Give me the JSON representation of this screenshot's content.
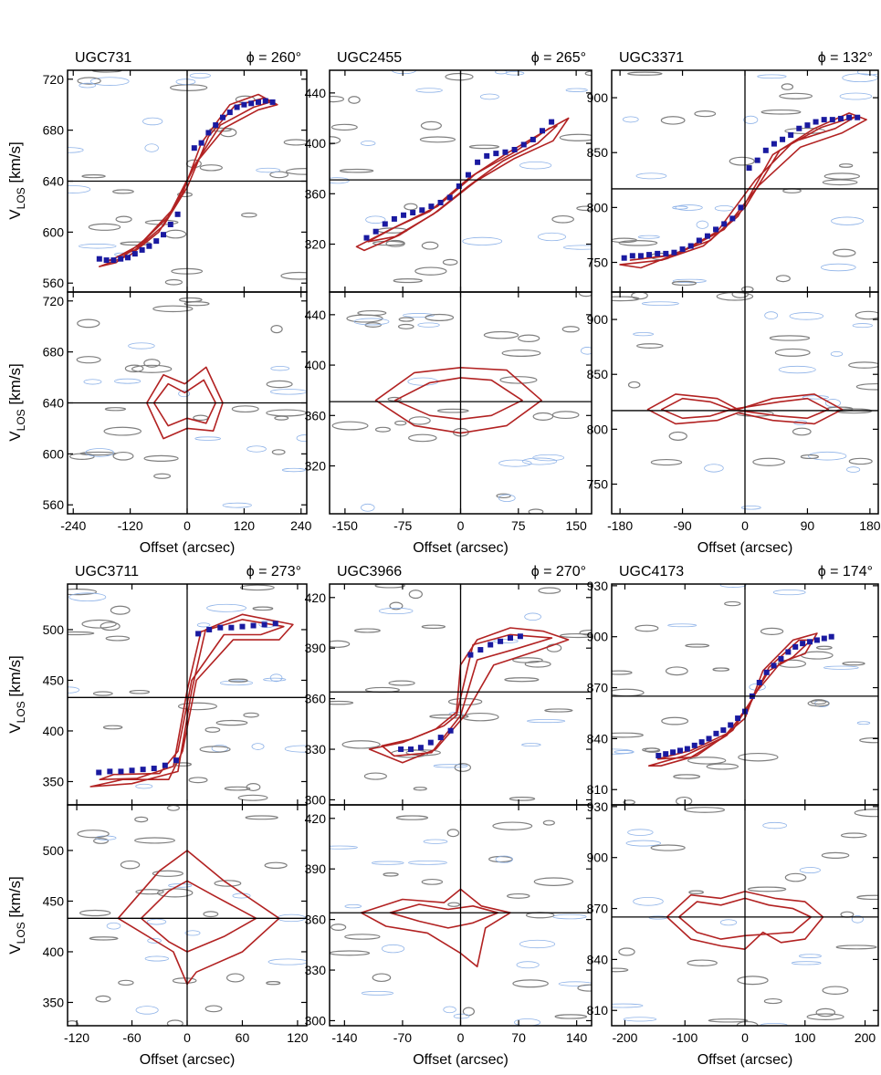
{
  "figure": {
    "axis_label_x": "Offset (arcsec)",
    "axis_label_y_main": "V",
    "axis_label_y_sub": "LOS",
    "axis_label_y_unit": " [km/s]",
    "colors": {
      "model_contour": "#b22222",
      "data_contour": "#7f7f7f",
      "negative_contour": "#8fb3e8",
      "rotation_curve": "#1a1aa0",
      "axes": "#000000"
    }
  },
  "chart_data": [
    {
      "type": "scatter",
      "galaxy": "UGC731",
      "phi": "ϕ = 260°",
      "vsys": 640,
      "x_ticks": [
        -240,
        -120,
        0,
        120,
        240
      ],
      "xlim": [
        -252,
        252
      ],
      "y_ticks": [
        560,
        600,
        640,
        680,
        720
      ],
      "ylim": [
        553,
        727
      ],
      "rotation_curve": {
        "x": [
          -185,
          -170,
          -155,
          -140,
          -125,
          -110,
          -95,
          -80,
          -65,
          -50,
          -35,
          -20,
          15,
          30,
          45,
          60,
          75,
          90,
          105,
          120,
          135,
          150,
          165,
          180
        ],
        "y": [
          579,
          578,
          578,
          579,
          580,
          583,
          586,
          589,
          593,
          598,
          606,
          614,
          666,
          670,
          678,
          684,
          690,
          694,
          698,
          700,
          701,
          702,
          703,
          702
        ]
      },
      "major_axis_model": [
        {
          "x": [
            -185,
            -120,
            -60,
            -10,
            30,
            90,
            150,
            190,
            150,
            80,
            20,
            -30,
            -90,
            -150,
            -185
          ],
          "y": [
            573,
            582,
            600,
            630,
            670,
            700,
            708,
            700,
            696,
            682,
            655,
            618,
            594,
            576,
            573
          ]
        },
        {
          "x": [
            -170,
            -110,
            -50,
            0,
            45,
            100,
            160,
            175,
            140,
            70,
            15,
            -40,
            -100,
            -160,
            -170
          ],
          "y": [
            577,
            586,
            605,
            635,
            675,
            699,
            705,
            702,
            698,
            684,
            652,
            612,
            590,
            578,
            577
          ]
        }
      ],
      "minor_axis_model": [
        {
          "x": [
            -85,
            -50,
            -5,
            40,
            75,
            55,
            0,
            -50,
            -85
          ],
          "y": [
            640,
            662,
            655,
            668,
            640,
            618,
            620,
            612,
            640
          ]
        },
        {
          "x": [
            -70,
            -40,
            -5,
            35,
            60,
            40,
            0,
            -40,
            -70
          ],
          "y": [
            640,
            655,
            648,
            658,
            640,
            624,
            628,
            622,
            640
          ]
        }
      ]
    },
    {
      "type": "scatter",
      "galaxy": "UGC2455",
      "phi": "ϕ = 265°",
      "vsys": 371,
      "x_ticks": [
        -150,
        -75,
        0,
        75,
        150
      ],
      "xlim": [
        -170,
        170
      ],
      "y_ticks": [
        320,
        360,
        400,
        440
      ],
      "ylim": [
        282,
        458
      ],
      "rotation_curve": {
        "x": [
          -122,
          -110,
          -98,
          -86,
          -74,
          -62,
          -50,
          -38,
          -26,
          -14,
          -2,
          10,
          22,
          34,
          46,
          58,
          70,
          82,
          94,
          106,
          118
        ],
        "y": [
          325,
          330,
          336,
          340,
          343,
          345,
          347,
          350,
          353,
          357,
          366,
          375,
          385,
          390,
          392,
          393,
          395,
          399,
          403,
          410,
          417
        ]
      },
      "major_axis_model": [
        {
          "x": [
            -135,
            -90,
            -40,
            10,
            60,
            110,
            140,
            120,
            70,
            20,
            -30,
            -80,
            -125,
            -135
          ],
          "y": [
            318,
            332,
            346,
            372,
            392,
            410,
            420,
            402,
            388,
            370,
            346,
            327,
            315,
            318
          ]
        },
        {
          "x": [
            -120,
            -80,
            -30,
            20,
            70,
            115,
            125,
            100,
            55,
            10,
            -35,
            -85,
            -120
          ],
          "y": [
            322,
            335,
            350,
            376,
            393,
            412,
            414,
            400,
            386,
            366,
            344,
            326,
            322
          ]
        }
      ],
      "minor_axis_model": [
        {
          "x": [
            -110,
            -60,
            0,
            60,
            105,
            60,
            0,
            -60,
            -110
          ],
          "y": [
            372,
            394,
            398,
            396,
            372,
            352,
            346,
            352,
            372
          ]
        },
        {
          "x": [
            -85,
            -40,
            0,
            40,
            80,
            40,
            0,
            -40,
            -85
          ],
          "y": [
            372,
            386,
            390,
            388,
            372,
            360,
            357,
            360,
            372
          ]
        }
      ]
    },
    {
      "type": "scatter",
      "galaxy": "UGC3371",
      "phi": "ϕ = 132°",
      "vsys": 817,
      "x_ticks": [
        -180,
        -90,
        0,
        90,
        180
      ],
      "xlim": [
        -192,
        192
      ],
      "y_ticks": [
        750,
        800,
        850,
        900
      ],
      "ylim": [
        723,
        925
      ],
      "rotation_curve": {
        "x": [
          -174,
          -162,
          -150,
          -138,
          -126,
          -114,
          -102,
          -90,
          -78,
          -66,
          -54,
          -42,
          -30,
          -18,
          -6,
          6,
          18,
          30,
          42,
          54,
          66,
          78,
          90,
          102,
          114,
          126,
          138,
          150,
          162
        ],
        "y": [
          754,
          756,
          756,
          757,
          758,
          758,
          759,
          762,
          765,
          770,
          774,
          780,
          785,
          790,
          800,
          836,
          843,
          852,
          858,
          862,
          866,
          872,
          875,
          878,
          880,
          880,
          881,
          882,
          882
        ]
      },
      "major_axis_model": [
        {
          "x": [
            -180,
            -120,
            -60,
            -10,
            40,
            100,
            150,
            175,
            140,
            80,
            20,
            -30,
            -90,
            -150,
            -180
          ],
          "y": [
            748,
            752,
            765,
            792,
            848,
            872,
            886,
            880,
            868,
            855,
            820,
            780,
            760,
            745,
            748
          ]
        },
        {
          "x": [
            -165,
            -110,
            -50,
            0,
            50,
            110,
            160,
            130,
            70,
            15,
            -40,
            -100,
            -165
          ],
          "y": [
            752,
            756,
            770,
            800,
            852,
            873,
            883,
            872,
            860,
            825,
            778,
            757,
            752
          ]
        }
      ],
      "minor_axis_model": [
        {
          "x": [
            -140,
            -100,
            -40,
            -10,
            40,
            100,
            140,
            100,
            40,
            -10,
            -40,
            -100,
            -140
          ],
          "y": [
            818,
            832,
            828,
            818,
            828,
            832,
            818,
            805,
            808,
            815,
            808,
            805,
            818
          ]
        },
        {
          "x": [
            -120,
            -90,
            -50,
            -20,
            50,
            90,
            120,
            90,
            50,
            -20,
            -50,
            -90,
            -120
          ],
          "y": [
            818,
            828,
            825,
            818,
            825,
            828,
            818,
            810,
            812,
            818,
            812,
            810,
            818
          ]
        }
      ]
    },
    {
      "type": "scatter",
      "galaxy": "UGC3711",
      "phi": "ϕ = 273°",
      "vsys": 433,
      "x_ticks": [
        -120,
        -60,
        0,
        60,
        120
      ],
      "xlim": [
        -130,
        130
      ],
      "y_ticks": [
        350,
        400,
        450,
        500
      ],
      "ylim": [
        327,
        545
      ],
      "rotation_curve": {
        "x": [
          -96,
          -84,
          -72,
          -60,
          -48,
          -36,
          -24,
          -12,
          12,
          24,
          36,
          48,
          60,
          72,
          84,
          96
        ],
        "y": [
          359,
          360,
          360,
          361,
          362,
          363,
          366,
          371,
          496,
          500,
          502,
          502,
          503,
          504,
          505,
          506
        ]
      },
      "major_axis_model": [
        {
          "x": [
            -105,
            -60,
            -10,
            5,
            20,
            60,
            115,
            100,
            50,
            10,
            -5,
            -20,
            -70,
            -105
          ],
          "y": [
            345,
            348,
            360,
            440,
            500,
            515,
            505,
            490,
            490,
            450,
            380,
            352,
            352,
            345
          ]
        },
        {
          "x": [
            -95,
            -55,
            -15,
            0,
            15,
            60,
            105,
            80,
            40,
            5,
            -10,
            -30,
            -80,
            -95
          ],
          "y": [
            352,
            353,
            365,
            440,
            498,
            510,
            503,
            495,
            495,
            450,
            380,
            358,
            357,
            352
          ]
        }
      ],
      "minor_axis_model": [
        {
          "x": [
            -75,
            -30,
            0,
            40,
            100,
            60,
            10,
            0,
            -15,
            -75
          ],
          "y": [
            433,
            480,
            500,
            470,
            433,
            400,
            380,
            368,
            400,
            433
          ]
        },
        {
          "x": [
            -50,
            -20,
            0,
            30,
            75,
            40,
            0,
            -20,
            -50
          ],
          "y": [
            433,
            460,
            470,
            455,
            433,
            415,
            400,
            410,
            433
          ]
        }
      ]
    },
    {
      "type": "scatter",
      "galaxy": "UGC3966",
      "phi": "ϕ = 270°",
      "vsys": 364,
      "x_ticks": [
        -140,
        -70,
        0,
        70,
        140
      ],
      "xlim": [
        -158,
        158
      ],
      "y_ticks": [
        300,
        330,
        360,
        390,
        420
      ],
      "ylim": [
        297,
        428
      ],
      "rotation_curve": {
        "x": [
          -72,
          -60,
          -48,
          -36,
          -24,
          -12,
          12,
          24,
          36,
          48,
          60,
          72
        ],
        "y": [
          330,
          330,
          331,
          334,
          337,
          341,
          386,
          389,
          392,
          394,
          396,
          397
        ]
      },
      "major_axis_model": [
        {
          "x": [
            -110,
            -70,
            -30,
            -5,
            0,
            20,
            60,
            100,
            130,
            90,
            40,
            5,
            -30,
            -70,
            -110
          ],
          "y": [
            330,
            334,
            342,
            352,
            380,
            395,
            402,
            400,
            395,
            388,
            380,
            350,
            330,
            322,
            330
          ]
        },
        {
          "x": [
            -95,
            -60,
            -20,
            -5,
            15,
            60,
            110,
            70,
            20,
            0,
            -35,
            -80,
            -95
          ],
          "y": [
            332,
            336,
            344,
            350,
            392,
            398,
            396,
            390,
            383,
            350,
            328,
            326,
            332
          ]
        }
      ],
      "minor_axis_model": [
        {
          "x": [
            -120,
            -70,
            -20,
            0,
            25,
            60,
            30,
            20,
            0,
            -40,
            -90,
            -120
          ],
          "y": [
            364,
            372,
            370,
            378,
            368,
            364,
            355,
            332,
            340,
            352,
            356,
            364
          ]
        },
        {
          "x": [
            -85,
            -50,
            -15,
            15,
            45,
            15,
            -15,
            -50,
            -85
          ],
          "y": [
            364,
            369,
            366,
            368,
            364,
            358,
            355,
            359,
            364
          ]
        }
      ]
    },
    {
      "type": "scatter",
      "galaxy": "UGC4173",
      "phi": "ϕ = 174°",
      "vsys": 865,
      "x_ticks": [
        -200,
        -100,
        0,
        100,
        200
      ],
      "xlim": [
        -222,
        222
      ],
      "y_ticks": [
        810,
        840,
        870,
        900,
        930
      ],
      "ylim": [
        801,
        931
      ],
      "rotation_curve": {
        "x": [
          -144,
          -132,
          -120,
          -108,
          -96,
          -84,
          -72,
          -60,
          -48,
          -36,
          -24,
          -12,
          0,
          12,
          24,
          36,
          48,
          60,
          72,
          84,
          96,
          108,
          120,
          132,
          144
        ],
        "y": [
          830,
          831,
          832,
          833,
          834,
          836,
          838,
          840,
          843,
          845,
          848,
          852,
          856,
          865,
          873,
          879,
          883,
          887,
          891,
          894,
          896,
          897,
          898,
          899,
          900
        ]
      },
      "major_axis_model": [
        {
          "x": [
            -160,
            -100,
            -40,
            0,
            30,
            80,
            120,
            100,
            60,
            20,
            -20,
            -80,
            -140,
            -160
          ],
          "y": [
            824,
            830,
            840,
            852,
            880,
            898,
            902,
            890,
            885,
            868,
            845,
            830,
            824,
            824
          ]
        },
        {
          "x": [
            -145,
            -90,
            -30,
            5,
            40,
            90,
            110,
            80,
            40,
            10,
            -30,
            -90,
            -145
          ],
          "y": [
            828,
            833,
            843,
            858,
            882,
            898,
            898,
            888,
            880,
            862,
            842,
            829,
            828
          ]
        }
      ],
      "minor_axis_model": [
        {
          "x": [
            -130,
            -90,
            -40,
            0,
            50,
            100,
            130,
            100,
            60,
            30,
            0,
            -40,
            -90,
            -130
          ],
          "y": [
            865,
            878,
            876,
            880,
            876,
            874,
            865,
            852,
            850,
            856,
            846,
            848,
            852,
            865
          ]
        },
        {
          "x": [
            -110,
            -80,
            -40,
            0,
            40,
            80,
            110,
            80,
            40,
            0,
            -40,
            -80,
            -110
          ],
          "y": [
            865,
            874,
            872,
            876,
            872,
            870,
            865,
            856,
            855,
            854,
            852,
            856,
            865
          ]
        }
      ]
    }
  ]
}
